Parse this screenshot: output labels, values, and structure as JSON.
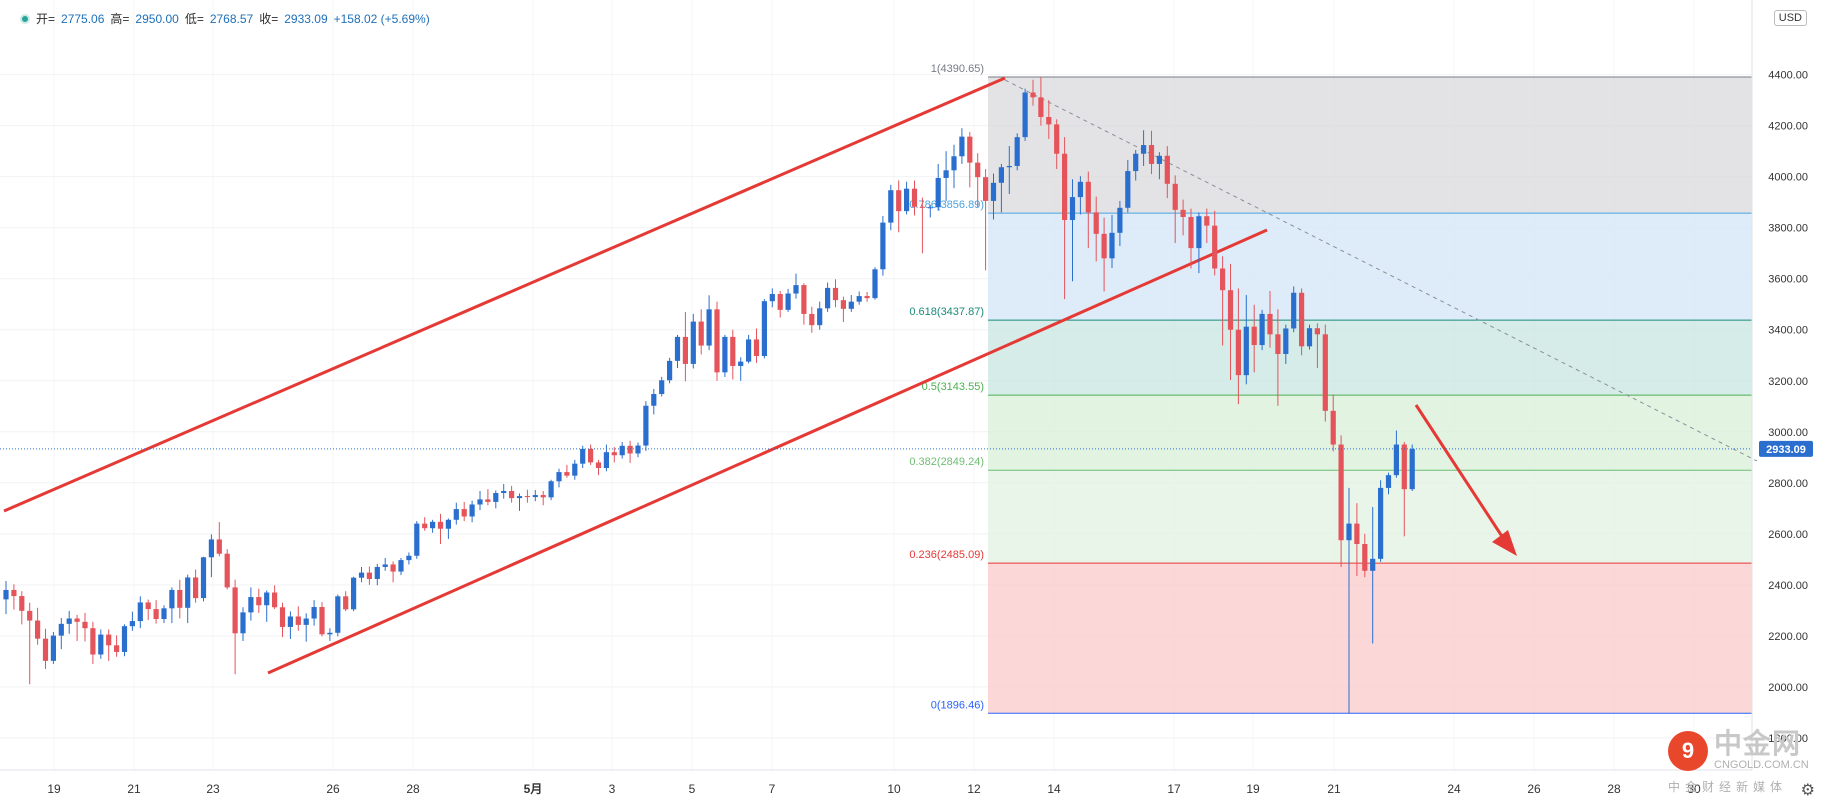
{
  "header": {
    "open_label": "开=",
    "open": "2775.06",
    "high_label": "高=",
    "high": "2950.00",
    "low_label": "低=",
    "low": "2768.57",
    "close_label": "收=",
    "close": "2933.09",
    "change": "+158.02 (+5.69%)"
  },
  "currency": "USD",
  "logo": {
    "cn": "中金网",
    "en": "CNGOLD.COM.CN",
    "tagline": "中金财经新媒体",
    "glyph": "9"
  },
  "chart_data": {
    "type": "candlestick",
    "title": "",
    "price_range": [
      1700,
      4580
    ],
    "y_ticks": [
      "1800.00",
      "2000.00",
      "2200.00",
      "2400.00",
      "2600.00",
      "2800.00",
      "3000.00",
      "3200.00",
      "3400.00",
      "3600.00",
      "3800.00",
      "4000.00",
      "4200.00",
      "4400.00"
    ],
    "x_ticks": [
      "19",
      "21",
      "23",
      "26",
      "28",
      "5月",
      "3",
      "5",
      "7",
      "10",
      "12",
      "14",
      "17",
      "19",
      "21",
      "24",
      "26",
      "28",
      "30"
    ],
    "last_price": 2933.09,
    "last_price_label": "2933.09",
    "up_color": "#2b6fce",
    "down_color": "#e4545a",
    "fib_retracement": {
      "high": 4390.65,
      "low": 1896.46,
      "levels": [
        {
          "ratio": 1,
          "price": 4390.65,
          "label": "1(4390.65)",
          "color": "#787b86"
        },
        {
          "ratio": 0.786,
          "price": 3856.89,
          "label": "0.786(3856.89)",
          "color": "#4ba3e3"
        },
        {
          "ratio": 0.618,
          "price": 3437.87,
          "label": "0.618(3437.87)",
          "color": "#1a8a7a"
        },
        {
          "ratio": 0.5,
          "price": 3143.55,
          "label": "0.5(3143.55)",
          "color": "#4caf50"
        },
        {
          "ratio": 0.382,
          "price": 2849.24,
          "label": "0.382(2849.24)",
          "color": "#6fbf73"
        },
        {
          "ratio": 0.236,
          "price": 2485.09,
          "label": "0.236(2485.09)",
          "color": "#e53935"
        },
        {
          "ratio": 0,
          "price": 1896.46,
          "label": "0(1896.46)",
          "color": "#2962ff"
        }
      ]
    },
    "candles": [
      [
        2343,
        2415,
        2285,
        2380
      ],
      [
        2380,
        2402,
        2303,
        2356
      ],
      [
        2356,
        2375,
        2245,
        2298
      ],
      [
        2298,
        2330,
        2010,
        2260
      ],
      [
        2260,
        2310,
        2165,
        2189
      ],
      [
        2189,
        2228,
        2070,
        2102
      ],
      [
        2102,
        2215,
        2090,
        2201
      ],
      [
        2201,
        2270,
        2148,
        2247
      ],
      [
        2247,
        2298,
        2208,
        2268
      ],
      [
        2268,
        2282,
        2180,
        2255
      ],
      [
        2255,
        2290,
        2178,
        2230
      ],
      [
        2230,
        2255,
        2090,
        2127
      ],
      [
        2127,
        2225,
        2110,
        2205
      ],
      [
        2205,
        2225,
        2102,
        2163
      ],
      [
        2163,
        2202,
        2118,
        2137
      ],
      [
        2137,
        2245,
        2120,
        2238
      ],
      [
        2238,
        2295,
        2220,
        2258
      ],
      [
        2258,
        2355,
        2230,
        2331
      ],
      [
        2331,
        2342,
        2262,
        2305
      ],
      [
        2305,
        2340,
        2248,
        2266
      ],
      [
        2266,
        2320,
        2250,
        2308
      ],
      [
        2308,
        2390,
        2250,
        2380
      ],
      [
        2380,
        2420,
        2268,
        2310
      ],
      [
        2310,
        2440,
        2250,
        2429
      ],
      [
        2429,
        2460,
        2330,
        2348
      ],
      [
        2348,
        2510,
        2335,
        2508
      ],
      [
        2508,
        2598,
        2430,
        2578
      ],
      [
        2578,
        2646,
        2512,
        2522
      ],
      [
        2522,
        2540,
        2382,
        2390
      ],
      [
        2390,
        2420,
        2050,
        2210
      ],
      [
        2210,
        2312,
        2180,
        2292
      ],
      [
        2292,
        2390,
        2260,
        2352
      ],
      [
        2352,
        2385,
        2290,
        2320
      ],
      [
        2320,
        2378,
        2255,
        2370
      ],
      [
        2370,
        2398,
        2305,
        2312
      ],
      [
        2312,
        2330,
        2195,
        2235
      ],
      [
        2235,
        2296,
        2188,
        2276
      ],
      [
        2276,
        2316,
        2220,
        2243
      ],
      [
        2243,
        2288,
        2177,
        2268
      ],
      [
        2268,
        2340,
        2240,
        2313
      ],
      [
        2313,
        2332,
        2198,
        2206
      ],
      [
        2206,
        2230,
        2180,
        2212
      ],
      [
        2212,
        2362,
        2198,
        2355
      ],
      [
        2355,
        2375,
        2297,
        2304
      ],
      [
        2304,
        2432,
        2297,
        2428
      ],
      [
        2428,
        2470,
        2410,
        2448
      ],
      [
        2448,
        2472,
        2400,
        2423
      ],
      [
        2423,
        2482,
        2398,
        2470
      ],
      [
        2470,
        2505,
        2455,
        2480
      ],
      [
        2480,
        2492,
        2410,
        2452
      ],
      [
        2452,
        2505,
        2438,
        2497
      ],
      [
        2497,
        2527,
        2480,
        2514
      ],
      [
        2514,
        2650,
        2502,
        2640
      ],
      [
        2640,
        2665,
        2612,
        2622
      ],
      [
        2622,
        2655,
        2604,
        2647
      ],
      [
        2647,
        2678,
        2560,
        2620
      ],
      [
        2620,
        2660,
        2580,
        2655
      ],
      [
        2655,
        2722,
        2636,
        2697
      ],
      [
        2697,
        2725,
        2650,
        2668
      ],
      [
        2668,
        2730,
        2645,
        2715
      ],
      [
        2715,
        2768,
        2693,
        2735
      ],
      [
        2735,
        2775,
        2712,
        2725
      ],
      [
        2725,
        2770,
        2700,
        2760
      ],
      [
        2760,
        2795,
        2738,
        2768
      ],
      [
        2768,
        2788,
        2722,
        2740
      ],
      [
        2740,
        2758,
        2690,
        2748
      ],
      [
        2748,
        2773,
        2722,
        2744
      ],
      [
        2744,
        2772,
        2728,
        2752
      ],
      [
        2752,
        2768,
        2712,
        2743
      ],
      [
        2743,
        2812,
        2732,
        2806
      ],
      [
        2806,
        2855,
        2782,
        2842
      ],
      [
        2842,
        2870,
        2820,
        2828
      ],
      [
        2828,
        2890,
        2812,
        2875
      ],
      [
        2875,
        2945,
        2858,
        2933
      ],
      [
        2933,
        2950,
        2870,
        2880
      ],
      [
        2880,
        2890,
        2830,
        2858
      ],
      [
        2858,
        2950,
        2845,
        2920
      ],
      [
        2920,
        2940,
        2880,
        2908
      ],
      [
        2908,
        2960,
        2895,
        2945
      ],
      [
        2945,
        2965,
        2878,
        2915
      ],
      [
        2915,
        2958,
        2900,
        2946
      ],
      [
        2946,
        3120,
        2925,
        3102
      ],
      [
        3102,
        3168,
        3068,
        3148
      ],
      [
        3148,
        3215,
        3138,
        3202
      ],
      [
        3202,
        3290,
        3190,
        3278
      ],
      [
        3278,
        3380,
        3250,
        3372
      ],
      [
        3372,
        3470,
        3198,
        3266
      ],
      [
        3266,
        3462,
        3248,
        3432
      ],
      [
        3432,
        3480,
        3303,
        3338
      ],
      [
        3338,
        3535,
        3320,
        3480
      ],
      [
        3480,
        3510,
        3200,
        3233
      ],
      [
        3233,
        3380,
        3215,
        3372
      ],
      [
        3372,
        3400,
        3205,
        3258
      ],
      [
        3258,
        3292,
        3200,
        3275
      ],
      [
        3275,
        3380,
        3268,
        3362
      ],
      [
        3362,
        3405,
        3270,
        3297
      ],
      [
        3297,
        3520,
        3288,
        3512
      ],
      [
        3512,
        3562,
        3488,
        3540
      ],
      [
        3540,
        3552,
        3448,
        3478
      ],
      [
        3478,
        3560,
        3470,
        3542
      ],
      [
        3542,
        3620,
        3522,
        3575
      ],
      [
        3575,
        3582,
        3420,
        3462
      ],
      [
        3462,
        3490,
        3388,
        3418
      ],
      [
        3418,
        3510,
        3400,
        3484
      ],
      [
        3484,
        3585,
        3470,
        3564
      ],
      [
        3564,
        3598,
        3488,
        3516
      ],
      [
        3516,
        3530,
        3430,
        3482
      ],
      [
        3482,
        3536,
        3470,
        3510
      ],
      [
        3510,
        3550,
        3498,
        3532
      ],
      [
        3532,
        3548,
        3510,
        3524
      ],
      [
        3524,
        3645,
        3518,
        3637
      ],
      [
        3637,
        3846,
        3612,
        3820
      ],
      [
        3820,
        3968,
        3790,
        3947
      ],
      [
        3947,
        3985,
        3782,
        3865
      ],
      [
        3865,
        3980,
        3852,
        3953
      ],
      [
        3953,
        3985,
        3848,
        3882
      ],
      [
        3882,
        3918,
        3700,
        3878
      ],
      [
        3878,
        3890,
        3840,
        3880
      ],
      [
        3880,
        4050,
        3866,
        3995
      ],
      [
        3995,
        4100,
        3905,
        4025
      ],
      [
        4025,
        4125,
        3955,
        4080
      ],
      [
        4080,
        4190,
        4050,
        4157
      ],
      [
        4157,
        4175,
        3958,
        4055
      ],
      [
        4055,
        4092,
        3880,
        3998
      ],
      [
        3998,
        4030,
        3633,
        3905
      ],
      [
        3905,
        4012,
        3832,
        3976
      ],
      [
        3976,
        4050,
        3860,
        4037
      ],
      [
        4037,
        4120,
        3932,
        4042
      ],
      [
        4042,
        4170,
        4025,
        4155
      ],
      [
        4155,
        4345,
        4140,
        4330
      ],
      [
        4330,
        4380,
        4278,
        4311
      ],
      [
        4311,
        4390,
        4200,
        4234
      ],
      [
        4234,
        4300,
        4148,
        4205
      ],
      [
        4205,
        4225,
        4030,
        4090
      ],
      [
        4090,
        4155,
        3520,
        3830
      ],
      [
        3830,
        3990,
        3590,
        3920
      ],
      [
        3920,
        4002,
        3852,
        3980
      ],
      [
        3980,
        4020,
        3720,
        3860
      ],
      [
        3860,
        3922,
        3668,
        3776
      ],
      [
        3776,
        3840,
        3550,
        3680
      ],
      [
        3680,
        3850,
        3642,
        3780
      ],
      [
        3780,
        3905,
        3728,
        3878
      ],
      [
        3878,
        4065,
        3860,
        4022
      ],
      [
        4022,
        4105,
        3985,
        4090
      ],
      [
        4090,
        4182,
        4042,
        4124
      ],
      [
        4124,
        4180,
        4010,
        4050
      ],
      [
        4050,
        4096,
        3990,
        4082
      ],
      [
        4082,
        4120,
        3916,
        3972
      ],
      [
        3972,
        4005,
        3740,
        3870
      ],
      [
        3870,
        3910,
        3770,
        3842
      ],
      [
        3842,
        3875,
        3640,
        3720
      ],
      [
        3720,
        3860,
        3622,
        3845
      ],
      [
        3845,
        3875,
        3740,
        3808
      ],
      [
        3808,
        3866,
        3613,
        3640
      ],
      [
        3640,
        3688,
        3338,
        3555
      ],
      [
        3555,
        3658,
        3203,
        3400
      ],
      [
        3400,
        3562,
        3108,
        3222
      ],
      [
        3222,
        3536,
        3186,
        3412
      ],
      [
        3412,
        3498,
        3233,
        3340
      ],
      [
        3340,
        3478,
        3320,
        3462
      ],
      [
        3462,
        3552,
        3330,
        3382
      ],
      [
        3382,
        3480,
        3102,
        3305
      ],
      [
        3305,
        3420,
        3266,
        3405
      ],
      [
        3405,
        3570,
        3390,
        3545
      ],
      [
        3545,
        3562,
        3300,
        3335
      ],
      [
        3335,
        3420,
        3322,
        3406
      ],
      [
        3406,
        3425,
        3250,
        3382
      ],
      [
        3382,
        3420,
        3040,
        3082
      ],
      [
        3082,
        3146,
        2923,
        2950
      ],
      [
        2950,
        2986,
        2470,
        2575
      ],
      [
        2575,
        2780,
        1896,
        2640
      ],
      [
        2640,
        2720,
        2435,
        2560
      ],
      [
        2560,
        2600,
        2430,
        2455
      ],
      [
        2455,
        2705,
        2170,
        2502
      ],
      [
        2502,
        2810,
        2490,
        2780
      ],
      [
        2780,
        2840,
        2755,
        2830
      ],
      [
        2830,
        3005,
        2820,
        2950
      ],
      [
        2950,
        2960,
        2590,
        2775
      ],
      [
        2775,
        2950,
        2768,
        2933
      ]
    ],
    "arrow": "downward trend arrow pointing toward the 0.236 retracement level"
  }
}
